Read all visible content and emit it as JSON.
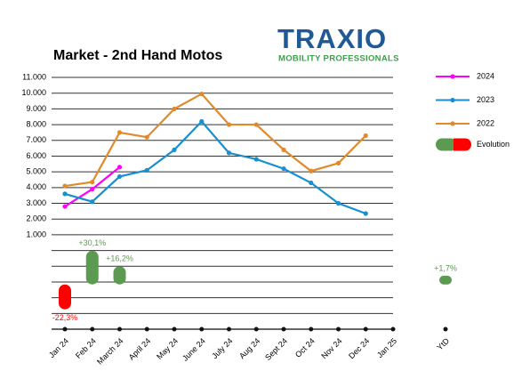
{
  "chart_data": {
    "type": "line",
    "title": "Market - 2nd Hand Motos",
    "logo": {
      "text": "TRAXIO",
      "tagline": "MOBILITY PROFESSIONALS"
    },
    "categories": [
      "Jan 24",
      "Feb 24",
      "March 24",
      "April 24",
      "May 24",
      "June 24",
      "July 24",
      "Aug 24",
      "Sept 24",
      "Oct 24",
      "Nov 24",
      "Dec 24",
      "Jan 25"
    ],
    "series": [
      {
        "name": "2024",
        "color": "#ff00ff",
        "values": [
          2800,
          3900,
          5300,
          null,
          null,
          null,
          null,
          null,
          null,
          null,
          null,
          null,
          null
        ]
      },
      {
        "name": "2023",
        "color": "#1a8fd0",
        "values": [
          3600,
          3100,
          4700,
          5100,
          6400,
          8200,
          6200,
          5800,
          5200,
          4300,
          3000,
          2350,
          null
        ]
      },
      {
        "name": "2022",
        "color": "#e08a2c",
        "values": [
          4100,
          4350,
          7500,
          7200,
          9000,
          9950,
          8000,
          8000,
          6400,
          5050,
          5550,
          7300,
          null
        ]
      }
    ],
    "evolution": {
      "name": "Evolution",
      "axis": "y2",
      "positive_color": "#5c9a52",
      "negative_color": "#ff0000",
      "values": [
        -22.3,
        30.1,
        16.2,
        null,
        null,
        null,
        null,
        null,
        null,
        null,
        null,
        null,
        null
      ],
      "value_labels": [
        "-22,3%",
        "+30,1%",
        "+16,2%",
        null,
        null,
        null,
        null,
        null,
        null,
        null,
        null,
        null,
        null
      ],
      "ytd": {
        "category": "YtD",
        "value": 1.7,
        "value_label": "+1,7%"
      }
    },
    "ylim": [
      -5000,
      11000
    ],
    "yticks": [
      {
        "value": 1000,
        "label": "1.000"
      },
      {
        "value": 2000,
        "label": "2.000"
      },
      {
        "value": 3000,
        "label": "3.000"
      },
      {
        "value": 4000,
        "label": "4.000"
      },
      {
        "value": 5000,
        "label": "5.000"
      },
      {
        "value": 6000,
        "label": "6.000"
      },
      {
        "value": 7000,
        "label": "7.000"
      },
      {
        "value": 8000,
        "label": "8.000"
      },
      {
        "value": 9000,
        "label": "9.000"
      },
      {
        "value": 10000,
        "label": "10.000"
      },
      {
        "value": 11000,
        "label": "11.000"
      }
    ],
    "minor_yticks": [
      0,
      -1000,
      -2000,
      -3000,
      -4000,
      -5000
    ],
    "y2lim": [
      -40,
      185
    ],
    "grid": true,
    "legend": "right"
  }
}
